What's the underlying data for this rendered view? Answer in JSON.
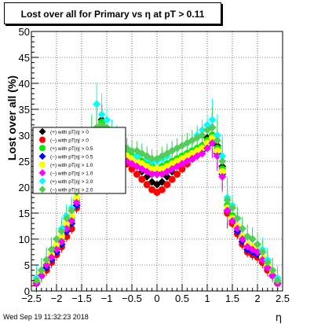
{
  "title": "Lost over all for Primary vs    η at pT > 0.11",
  "footer": "Wed Sep 19 11:32:23 2018",
  "chart_data": {
    "type": "scatter",
    "title": "Lost over all for Primary vs    η at pT > 0.11",
    "xlabel": "η",
    "ylabel": "Lost over all (%)",
    "xlim": [
      -2.5,
      2.5
    ],
    "ylim": [
      0,
      50
    ],
    "x_ticks": [
      "−2.5",
      "−2",
      "−1.5",
      "−1",
      "−0.5",
      "0",
      "0.5",
      "1",
      "1.5",
      "2",
      "2.5"
    ],
    "y_ticks": [
      "0",
      "5",
      "10",
      "15",
      "20",
      "25",
      "30",
      "35",
      "40",
      "45",
      "50"
    ],
    "grid": true,
    "legend_position": "left-middle",
    "x": [
      -2.4,
      -2.3,
      -2.2,
      -2.1,
      -2.0,
      -1.9,
      -1.8,
      -1.7,
      -1.6,
      -1.5,
      -1.4,
      -1.3,
      -1.2,
      -1.1,
      -1.0,
      -0.9,
      -0.8,
      -0.7,
      -0.6,
      -0.5,
      -0.4,
      -0.3,
      -0.2,
      -0.1,
      0.0,
      0.1,
      0.2,
      0.3,
      0.4,
      0.5,
      0.6,
      0.7,
      0.8,
      0.9,
      1.0,
      1.1,
      1.2,
      1.3,
      1.4,
      1.5,
      1.6,
      1.7,
      1.8,
      1.9,
      2.0,
      2.1,
      2.2,
      2.3,
      2.4
    ],
    "series": [
      {
        "name": "(+) with pT|η| > 0",
        "color": "#000000",
        "marker": "diamond",
        "values": [
          1.5,
          3.0,
          4.5,
          6.0,
          7.5,
          9.0,
          11.5,
          13.0,
          16.5,
          21.0,
          23.5,
          26.5,
          29.0,
          33.0,
          31.0,
          29.0,
          27.5,
          26.5,
          25.5,
          25.0,
          24.0,
          23.0,
          22.0,
          21.0,
          20.5,
          21.0,
          22.0,
          23.0,
          24.0,
          25.0,
          25.5,
          26.0,
          27.0,
          28.0,
          29.5,
          31.5,
          28.0,
          24.0,
          15.5,
          13.5,
          12.0,
          9.5,
          8.0,
          7.5,
          7.0,
          6.0,
          4.5,
          3.0,
          1.5
        ]
      },
      {
        "name": "(−) with pT|η| > 0",
        "color": "#ff0000",
        "marker": "circle",
        "values": [
          1.5,
          3.0,
          4.0,
          5.5,
          7.0,
          8.5,
          10.5,
          12.0,
          16.0,
          20.5,
          23.0,
          25.5,
          28.0,
          32.0,
          30.0,
          28.0,
          26.5,
          25.5,
          24.5,
          23.5,
          22.5,
          21.5,
          20.5,
          19.5,
          19.0,
          19.5,
          20.5,
          21.5,
          22.5,
          23.5,
          24.5,
          25.5,
          26.5,
          27.5,
          28.5,
          30.0,
          27.0,
          23.0,
          15.0,
          13.0,
          11.0,
          9.0,
          7.5,
          7.0,
          6.5,
          5.5,
          4.0,
          3.0,
          1.5
        ]
      },
      {
        "name": "(+) with pT|η| > 0.5",
        "color": "#00ee00",
        "marker": "circle",
        "values": [
          2.0,
          3.5,
          5.0,
          7.0,
          8.5,
          10.0,
          12.5,
          14.0,
          17.5,
          22.0,
          24.5,
          27.5,
          30.0,
          32.5,
          30.5,
          28.5,
          27.5,
          27.0,
          26.5,
          26.0,
          25.5,
          25.0,
          24.5,
          24.0,
          23.5,
          24.0,
          24.5,
          25.0,
          25.5,
          26.0,
          26.5,
          27.0,
          27.5,
          28.0,
          29.0,
          30.0,
          27.5,
          23.5,
          16.5,
          14.5,
          12.5,
          10.5,
          9.0,
          8.5,
          7.5,
          6.5,
          5.0,
          3.5,
          2.0
        ]
      },
      {
        "name": "(−) with pT|η| > 0.5",
        "color": "#0000ff",
        "marker": "diamond",
        "values": [
          1.5,
          3.0,
          4.5,
          6.0,
          7.5,
          9.0,
          11.5,
          13.0,
          16.5,
          21.0,
          23.5,
          26.0,
          28.5,
          31.5,
          29.5,
          27.5,
          26.5,
          26.0,
          25.5,
          25.0,
          24.5,
          24.0,
          23.5,
          23.0,
          22.5,
          23.0,
          23.5,
          24.0,
          24.5,
          25.0,
          25.5,
          26.0,
          26.5,
          27.0,
          28.0,
          29.0,
          26.5,
          22.5,
          15.5,
          13.5,
          11.5,
          9.5,
          8.0,
          7.5,
          7.0,
          6.0,
          4.5,
          3.0,
          1.5
        ]
      },
      {
        "name": "(+) with pT|η| > 1.0",
        "color": "#ffff00",
        "marker": "circle",
        "values": [
          2.0,
          3.5,
          5.5,
          7.0,
          9.0,
          10.5,
          13.0,
          14.5,
          18.0,
          22.5,
          25.0,
          28.0,
          30.5,
          31.0,
          29.5,
          28.0,
          27.0,
          26.5,
          26.0,
          25.5,
          25.0,
          24.5,
          24.0,
          23.5,
          23.5,
          23.5,
          24.0,
          24.5,
          25.0,
          25.5,
          26.0,
          26.5,
          27.0,
          27.5,
          28.5,
          29.5,
          27.0,
          23.0,
          16.0,
          14.0,
          12.5,
          10.5,
          9.0,
          8.5,
          8.0,
          6.5,
          5.0,
          3.5,
          2.0
        ]
      },
      {
        "name": "(−) with pT|η| > 1.0",
        "color": "#ff00ff",
        "marker": "diamond",
        "values": [
          1.5,
          3.0,
          5.0,
          6.5,
          8.0,
          9.5,
          12.0,
          13.5,
          17.0,
          21.5,
          24.0,
          27.0,
          29.5,
          30.5,
          29.0,
          27.5,
          26.0,
          25.5,
          25.0,
          24.5,
          24.0,
          23.5,
          23.0,
          22.5,
          22.5,
          22.5,
          23.0,
          23.5,
          24.0,
          24.5,
          25.0,
          25.5,
          26.0,
          26.5,
          27.5,
          28.5,
          26.0,
          22.0,
          15.5,
          13.5,
          12.0,
          10.0,
          8.5,
          8.0,
          7.5,
          6.0,
          4.5,
          3.0,
          1.5
        ]
      },
      {
        "name": "(+) with pT|η| > 2.0",
        "color": "#00ffff",
        "marker": "diamond",
        "values": [
          2.5,
          4.0,
          6.0,
          8.0,
          10.0,
          12.0,
          14.5,
          16.0,
          19.5,
          24.5,
          27.0,
          30.0,
          36.0,
          34.0,
          33.0,
          31.0,
          30.0,
          29.0,
          27.5,
          27.0,
          26.0,
          26.5,
          25.5,
          25.0,
          25.0,
          25.5,
          26.0,
          27.0,
          27.5,
          28.0,
          28.5,
          29.0,
          30.0,
          31.0,
          32.0,
          33.0,
          30.0,
          26.0,
          18.0,
          16.5,
          14.0,
          12.0,
          10.5,
          10.0,
          9.0,
          8.0,
          6.0,
          4.0,
          2.5
        ]
      },
      {
        "name": "(−) with pT|η| > 2.0",
        "color": "#55cc55",
        "marker": "diamond",
        "values": [
          2.0,
          4.0,
          6.0,
          8.0,
          10.0,
          11.5,
          14.0,
          15.5,
          19.0,
          24.0,
          26.5,
          29.5,
          31.5,
          32.0,
          31.5,
          30.0,
          29.0,
          28.5,
          27.5,
          27.0,
          27.0,
          26.5,
          26.0,
          25.5,
          25.5,
          26.0,
          26.5,
          27.0,
          27.5,
          28.0,
          28.5,
          29.0,
          29.5,
          30.0,
          31.0,
          31.5,
          29.0,
          25.0,
          17.5,
          16.0,
          14.0,
          12.0,
          10.5,
          10.0,
          9.0,
          7.5,
          5.5,
          4.0,
          2.0
        ]
      }
    ]
  }
}
